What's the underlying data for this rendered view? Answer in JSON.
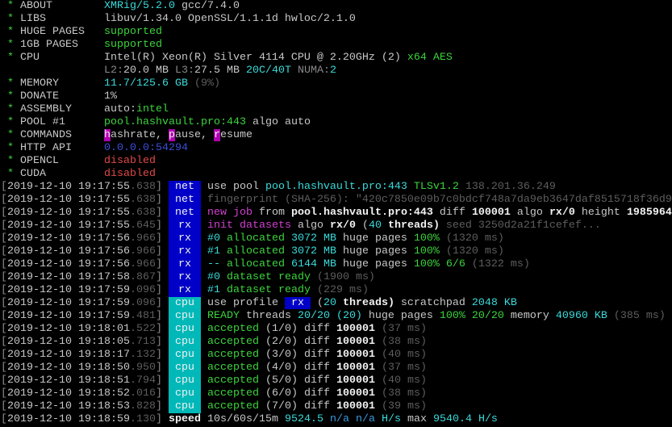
{
  "colors": {
    "green": "#3cd43c",
    "cyan": "#3adada",
    "tag_blue": "#0000c8",
    "tag_cyan": "#00b8b8",
    "red": "#e04848",
    "magenta": "#d040d0"
  },
  "info": [
    {
      "label": "ABOUT",
      "segments": [
        [
          "XMRig/5.2.0",
          "c"
        ],
        [
          " gcc/7.4.0",
          "w"
        ]
      ]
    },
    {
      "label": "LIBS",
      "segments": [
        [
          "libuv/1.34.0 OpenSSL/1.1.1d hwloc/2.1.0",
          "w"
        ]
      ]
    },
    {
      "label": "HUGE PAGES",
      "segments": [
        [
          "supported",
          "g"
        ]
      ]
    },
    {
      "label": "1GB PAGES",
      "segments": [
        [
          "supported",
          "g"
        ]
      ]
    },
    {
      "label": "CPU",
      "segments": [
        [
          "Intel(R) Xeon(R) Silver 4114 CPU @ 2.20GHz (2) ",
          "w"
        ],
        [
          "x64 AES",
          "g"
        ]
      ]
    },
    {
      "label": "",
      "segments": [
        [
          "L2:",
          "gr"
        ],
        [
          "20.0 MB ",
          "w"
        ],
        [
          "L3:",
          "gr"
        ],
        [
          "27.5 MB ",
          "w"
        ],
        [
          "20C/40T ",
          "c"
        ],
        [
          "NUMA:",
          "gr"
        ],
        [
          "2",
          "c"
        ]
      ]
    },
    {
      "label": "MEMORY",
      "segments": [
        [
          "11.7/125.6 GB ",
          "c"
        ],
        [
          "(9%)",
          "dg"
        ]
      ]
    },
    {
      "label": "DONATE",
      "segments": [
        [
          "1%",
          "w"
        ]
      ]
    },
    {
      "label": "ASSEMBLY",
      "segments": [
        [
          "auto:",
          "w"
        ],
        [
          "intel",
          "g"
        ]
      ]
    },
    {
      "label": "POOL #1",
      "segments": [
        [
          "pool.hashvault.pro:443 ",
          "g"
        ],
        [
          "algo auto",
          "w"
        ]
      ]
    },
    {
      "label": "COMMANDS",
      "segments": [
        [
          "h",
          "mbg"
        ],
        [
          "ashrate, ",
          "w"
        ],
        [
          "p",
          "mbg"
        ],
        [
          "ause, ",
          "w"
        ],
        [
          "r",
          "mbg"
        ],
        [
          "esume",
          "w"
        ]
      ]
    },
    {
      "label": "HTTP API",
      "segments": [
        [
          "0.0.0.0:54294",
          "b"
        ]
      ]
    },
    {
      "label": "OPENCL",
      "segments": [
        [
          "disabled",
          "r"
        ]
      ]
    },
    {
      "label": "CUDA",
      "segments": [
        [
          "disabled",
          "r"
        ]
      ]
    }
  ],
  "log": [
    {
      "time": "2019-12-10 19:17:55",
      "ms": ".638",
      "tag": "net",
      "segments": [
        [
          "use pool ",
          "w"
        ],
        [
          "pool.hashvault.pro:443 ",
          "c"
        ],
        [
          "TLSv1.2 ",
          "g"
        ],
        [
          "138.201.36.249",
          "dg"
        ]
      ]
    },
    {
      "time": "2019-12-10 19:17:55",
      "ms": ".638",
      "tag": "net",
      "segments": [
        [
          "fingerprint (SHA-256): \"420c7850e09b7c0bdcf748a7da9eb3647daf8515718f36d9",
          "dg"
        ]
      ]
    },
    {
      "time": "2019-12-10 19:17:55",
      "ms": ".638",
      "tag": "net",
      "segments": [
        [
          "new job",
          "m"
        ],
        [
          " from ",
          "w"
        ],
        [
          "pool.hashvault.pro:443",
          "W"
        ],
        [
          " diff ",
          "w"
        ],
        [
          "100001",
          "W"
        ],
        [
          " algo ",
          "w"
        ],
        [
          "rx/0",
          "W"
        ],
        [
          " height ",
          "w"
        ],
        [
          "1985964",
          "W"
        ]
      ]
    },
    {
      "time": "2019-12-10 19:17:55",
      "ms": ".645",
      "tag": "rx",
      "segments": [
        [
          "init datasets",
          "m"
        ],
        [
          " algo ",
          "w"
        ],
        [
          "rx/0",
          "W"
        ],
        [
          " (",
          "w"
        ],
        [
          "40",
          "c"
        ],
        [
          " threads)",
          "W"
        ],
        [
          " seed 3250d2a21f1cefef...",
          "dg"
        ]
      ]
    },
    {
      "time": "2019-12-10 19:17:56",
      "ms": ".966",
      "tag": "rx",
      "segments": [
        [
          "#0 ",
          "c"
        ],
        [
          "allocated ",
          "g"
        ],
        [
          "3072 MB",
          "c"
        ],
        [
          " huge pages ",
          "w"
        ],
        [
          "100%",
          "g"
        ],
        [
          " (1320 ms)",
          "dg"
        ]
      ]
    },
    {
      "time": "2019-12-10 19:17:56",
      "ms": ".966",
      "tag": "rx",
      "segments": [
        [
          "#1 ",
          "c"
        ],
        [
          "allocated ",
          "g"
        ],
        [
          "3072 MB",
          "c"
        ],
        [
          " huge pages ",
          "w"
        ],
        [
          "100%",
          "g"
        ],
        [
          " (1320 ms)",
          "dg"
        ]
      ]
    },
    {
      "time": "2019-12-10 19:17:56",
      "ms": ".966",
      "tag": "rx",
      "segments": [
        [
          "-- ",
          "c"
        ],
        [
          "allocated ",
          "g"
        ],
        [
          "6144 MB",
          "c"
        ],
        [
          " huge pages ",
          "w"
        ],
        [
          "100% 6/6",
          "g"
        ],
        [
          " (1322 ms)",
          "dg"
        ]
      ]
    },
    {
      "time": "2019-12-10 19:17:58",
      "ms": ".867",
      "tag": "rx",
      "segments": [
        [
          "#0 ",
          "c"
        ],
        [
          "dataset ready",
          "g"
        ],
        [
          " (1900 ms)",
          "dg"
        ]
      ]
    },
    {
      "time": "2019-12-10 19:17:59",
      "ms": ".096",
      "tag": "rx",
      "segments": [
        [
          "#1 ",
          "c"
        ],
        [
          "dataset ready",
          "g"
        ],
        [
          " (229 ms)",
          "dg"
        ]
      ]
    },
    {
      "time": "2019-12-10 19:17:59",
      "ms": ".096",
      "tag": "cpu",
      "segments": [
        [
          "use profile ",
          "w"
        ],
        [
          " rx ",
          "rxbox"
        ],
        [
          " (",
          "w"
        ],
        [
          "20",
          "c"
        ],
        [
          " threads)",
          "W"
        ],
        [
          " scratchpad ",
          "w"
        ],
        [
          "2048 KB",
          "c"
        ]
      ]
    },
    {
      "time": "2019-12-10 19:17:59",
      "ms": ".481",
      "tag": "cpu",
      "segments": [
        [
          "READY",
          "g"
        ],
        [
          " threads ",
          "w"
        ],
        [
          "20/20 (20)",
          "c"
        ],
        [
          " huge pages ",
          "w"
        ],
        [
          "100% 20/20",
          "g"
        ],
        [
          " memory ",
          "w"
        ],
        [
          "40960 KB",
          "c"
        ],
        [
          " (385 ms)",
          "dg"
        ]
      ]
    },
    {
      "time": "2019-12-10 19:18:01",
      "ms": ".522",
      "tag": "cpu",
      "segments": [
        [
          "accepted ",
          "g"
        ],
        [
          "(1/0)",
          "w"
        ],
        [
          " diff ",
          "w"
        ],
        [
          "100001",
          "W"
        ],
        [
          " (37 ms)",
          "dg"
        ]
      ]
    },
    {
      "time": "2019-12-10 19:18:05",
      "ms": ".713",
      "tag": "cpu",
      "segments": [
        [
          "accepted ",
          "g"
        ],
        [
          "(2/0)",
          "w"
        ],
        [
          " diff ",
          "w"
        ],
        [
          "100001",
          "W"
        ],
        [
          " (38 ms)",
          "dg"
        ]
      ]
    },
    {
      "time": "2019-12-10 19:18:17",
      "ms": ".132",
      "tag": "cpu",
      "segments": [
        [
          "accepted ",
          "g"
        ],
        [
          "(3/0)",
          "w"
        ],
        [
          " diff ",
          "w"
        ],
        [
          "100001",
          "W"
        ],
        [
          " (40 ms)",
          "dg"
        ]
      ]
    },
    {
      "time": "2019-12-10 19:18:50",
      "ms": ".950",
      "tag": "cpu",
      "segments": [
        [
          "accepted ",
          "g"
        ],
        [
          "(4/0)",
          "w"
        ],
        [
          " diff ",
          "w"
        ],
        [
          "100001",
          "W"
        ],
        [
          " (37 ms)",
          "dg"
        ]
      ]
    },
    {
      "time": "2019-12-10 19:18:51",
      "ms": ".794",
      "tag": "cpu",
      "segments": [
        [
          "accepted ",
          "g"
        ],
        [
          "(5/0)",
          "w"
        ],
        [
          " diff ",
          "w"
        ],
        [
          "100001",
          "W"
        ],
        [
          " (40 ms)",
          "dg"
        ]
      ]
    },
    {
      "time": "2019-12-10 19:18:52",
      "ms": ".016",
      "tag": "cpu",
      "segments": [
        [
          "accepted ",
          "g"
        ],
        [
          "(6/0)",
          "w"
        ],
        [
          " diff ",
          "w"
        ],
        [
          "100001",
          "W"
        ],
        [
          " (38 ms)",
          "dg"
        ]
      ]
    },
    {
      "time": "2019-12-10 19:18:53",
      "ms": ".828",
      "tag": "cpu",
      "segments": [
        [
          "accepted ",
          "g"
        ],
        [
          "(7/0)",
          "w"
        ],
        [
          " diff ",
          "w"
        ],
        [
          "100001",
          "W"
        ],
        [
          " (39 ms)",
          "dg"
        ]
      ]
    },
    {
      "time": "2019-12-10 19:18:59",
      "ms": ".130",
      "tag": "",
      "segments": [
        [
          "speed ",
          "W"
        ],
        [
          "10s/60s/15m ",
          "w"
        ],
        [
          "9524.5 ",
          "c"
        ],
        [
          "n/a n/a ",
          "dc"
        ],
        [
          "H/s",
          "c"
        ],
        [
          " max ",
          "w"
        ],
        [
          "9540.4 H/s",
          "c"
        ]
      ]
    }
  ]
}
